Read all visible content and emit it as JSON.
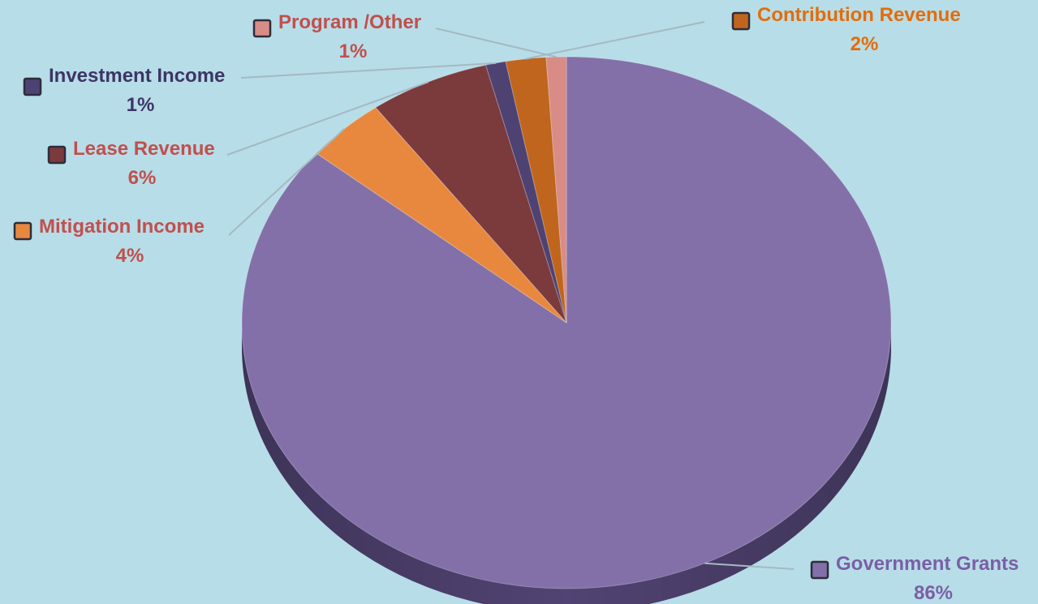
{
  "chart_data": {
    "type": "pie",
    "title": "",
    "start_angle_deg": 0,
    "direction": "clockwise",
    "slices": [
      {
        "name": "Government Grants",
        "value": 86,
        "label": "86%",
        "color": "#8470a9",
        "label_color": "#7a5fa6"
      },
      {
        "name": "Mitigation Income",
        "value": 4,
        "label": "4%",
        "color": "#e8883f",
        "label_color": "#c0504d"
      },
      {
        "name": "Lease Revenue",
        "value": 6,
        "label": "6%",
        "color": "#7b3a3c",
        "label_color": "#c0504d"
      },
      {
        "name": "Investment Income",
        "value": 1,
        "label": "1%",
        "color": "#4e4273",
        "label_color": "#3d3566"
      },
      {
        "name": "Contribution Revenue",
        "value": 2,
        "label": "2%",
        "color": "#c0651d",
        "label_color": "#e46c0a"
      },
      {
        "name": "Program /Other",
        "value": 1,
        "label": "1%",
        "color": "#d98c86",
        "label_color": "#c0504d"
      }
    ]
  }
}
